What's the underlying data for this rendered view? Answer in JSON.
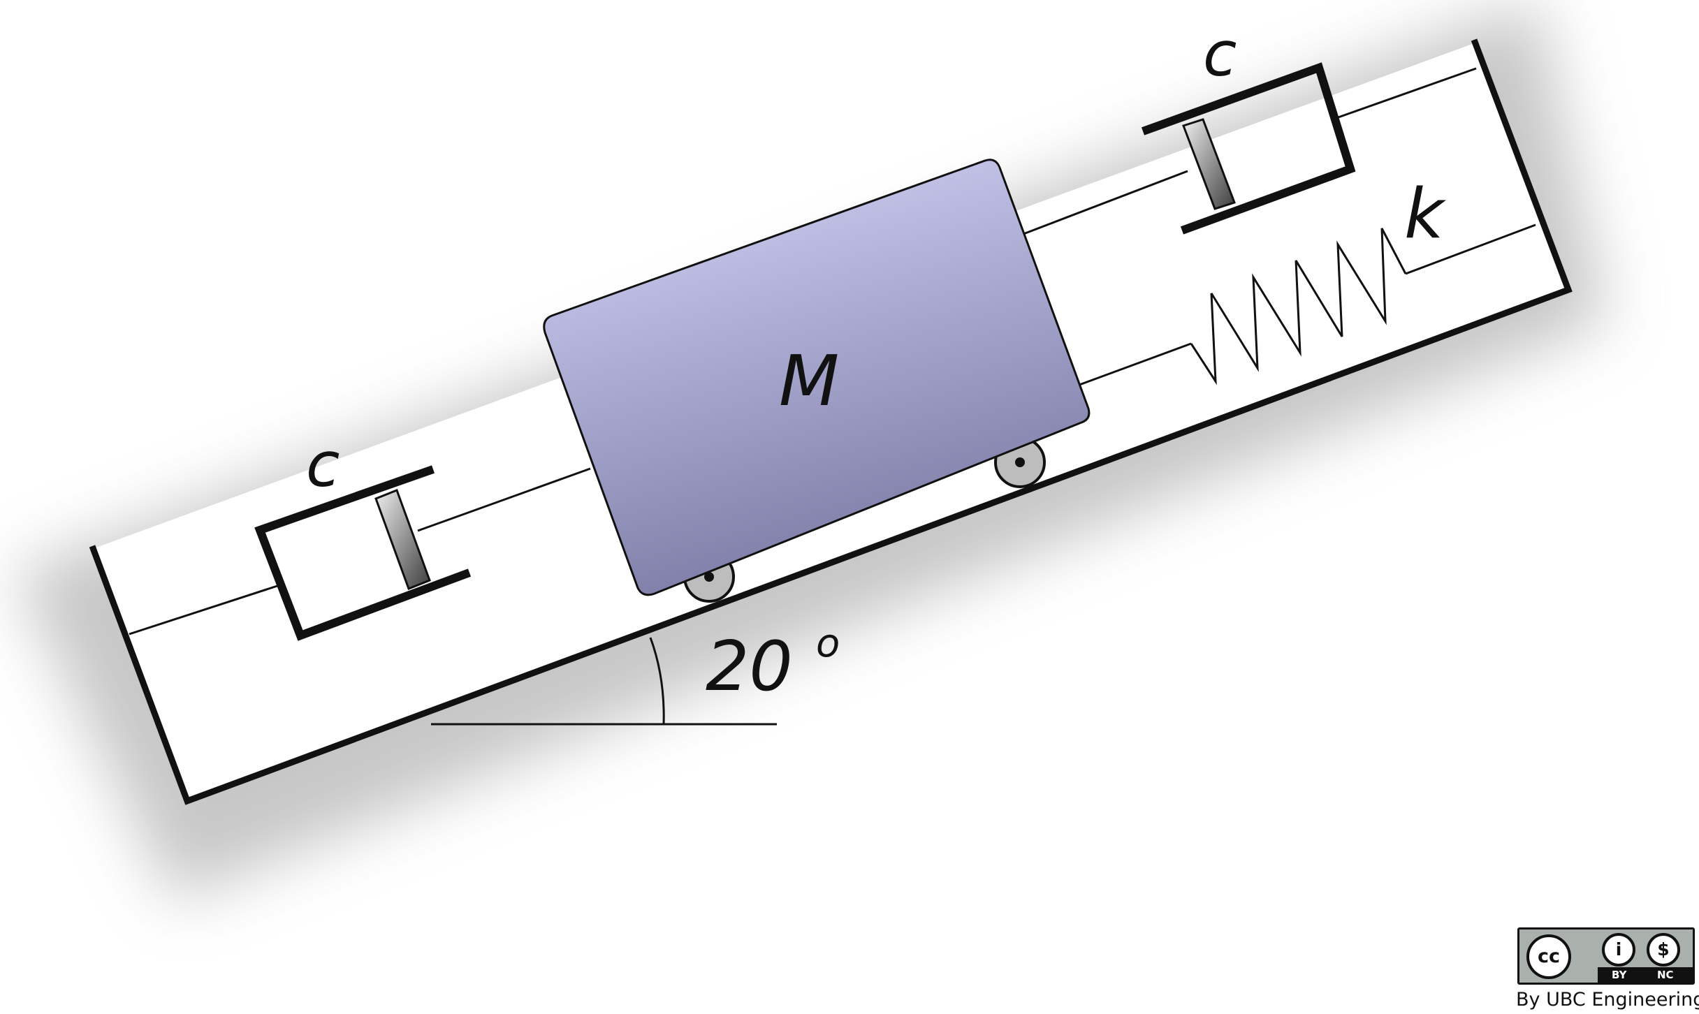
{
  "diagram": {
    "mass_label": "M",
    "left_damper_label": "c",
    "right_damper_label": "c",
    "spring_label": "k",
    "angle_label": "20",
    "angle_unit_glyph": "o"
  },
  "license": {
    "cc_glyph": "cc",
    "attribution_glyph": "i",
    "noncommercial_glyph": "$",
    "by_label": "BY",
    "nc_label": "NC",
    "credit": "By UBC Engineering"
  },
  "colors": {
    "mass_fill_top": "#d8d8fc",
    "mass_fill_bottom": "#7c7ca6",
    "piston_light": "#e2e2e2",
    "piston_dark": "#444444",
    "wheel_fill": "#bdbdbd",
    "shadow": "#9a9a9a",
    "line": "#111111"
  }
}
